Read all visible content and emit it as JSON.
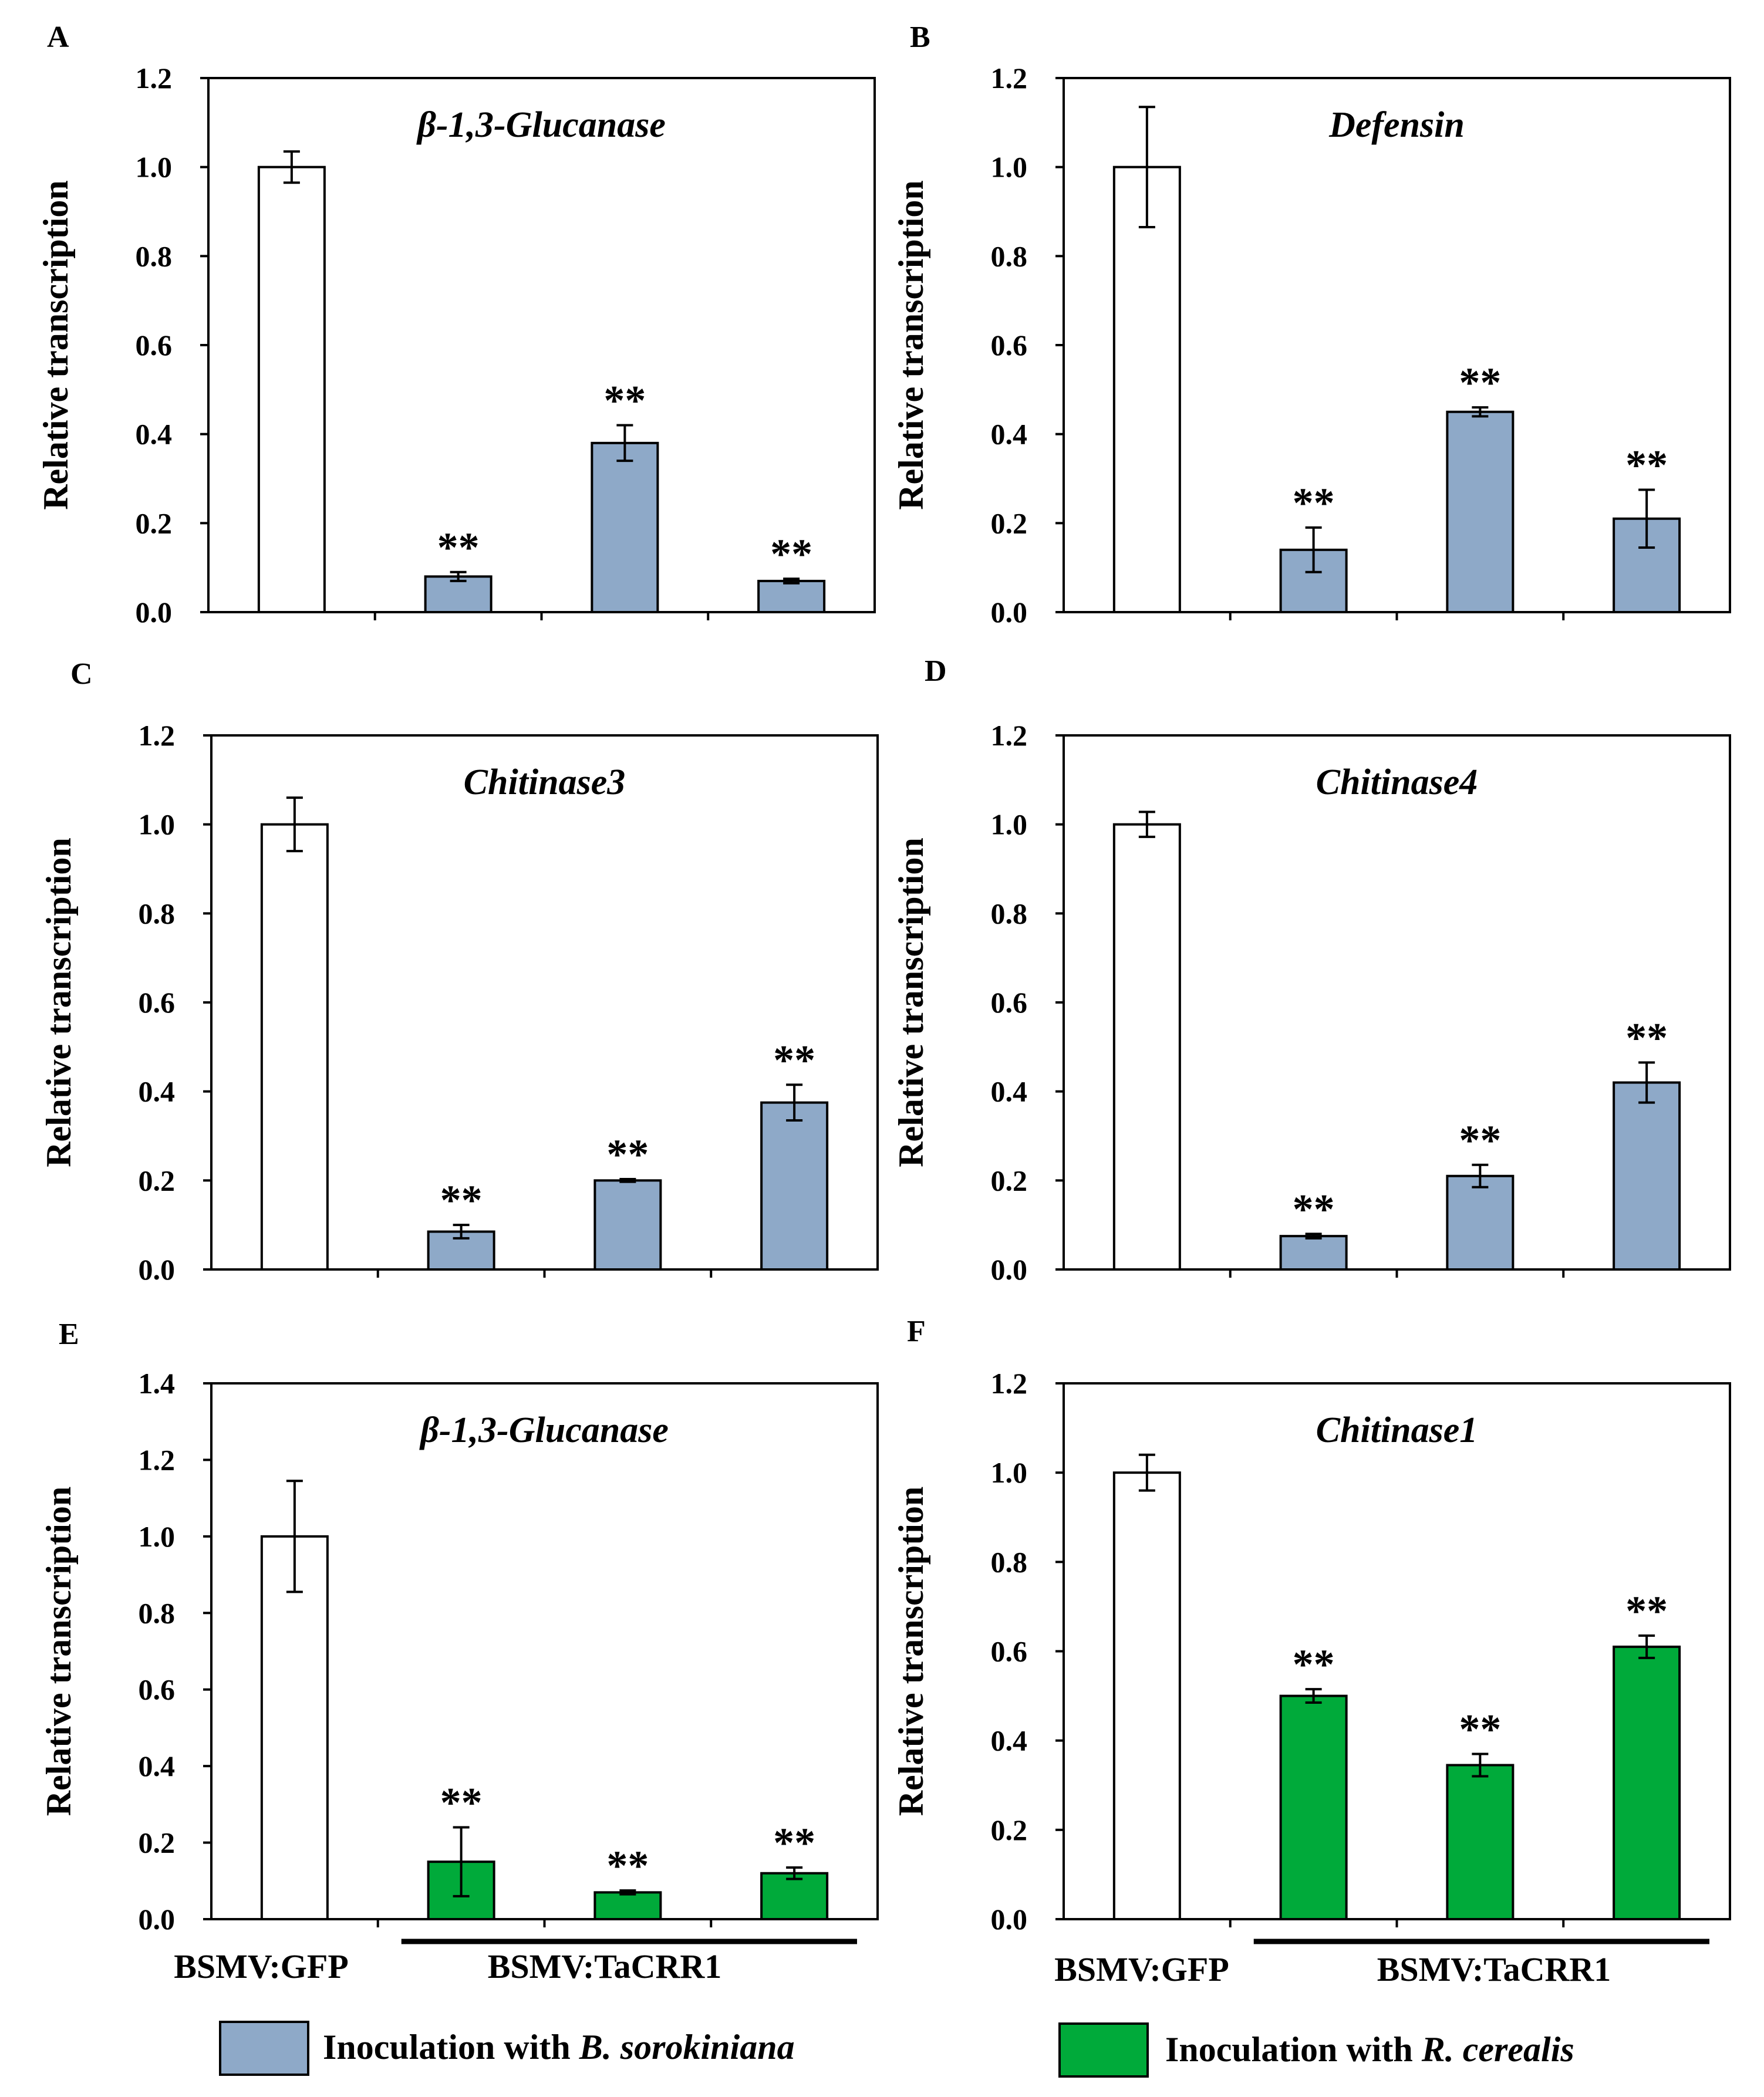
{
  "chart_data": [
    {
      "type": "bar",
      "panel": "A",
      "title": "β-1,3-Glucanase",
      "ylabel": "Relative transcription",
      "ylim": [
        0,
        1.2
      ],
      "yticks": [
        "0.0",
        "0.2",
        "0.4",
        "0.6",
        "0.8",
        "1.0",
        "1.2"
      ],
      "values": [
        1.0,
        0.08,
        0.38,
        0.07
      ],
      "errors": [
        0.035,
        0.01,
        0.04,
        0.005
      ],
      "significance": [
        "",
        "**",
        "**",
        "**"
      ],
      "bar_colors": [
        "#ffffff",
        "#8ea9c8",
        "#8ea9c8",
        "#8ea9c8"
      ]
    },
    {
      "type": "bar",
      "panel": "B",
      "title": "Defensin",
      "ylabel": "Relative transcription",
      "ylim": [
        0,
        1.2
      ],
      "yticks": [
        "0.0",
        "0.2",
        "0.4",
        "0.6",
        "0.8",
        "1.0",
        "1.2"
      ],
      "values": [
        1.0,
        0.14,
        0.45,
        0.21
      ],
      "errors": [
        0.135,
        0.05,
        0.01,
        0.065
      ],
      "significance": [
        "",
        "**",
        "**",
        "**"
      ],
      "bar_colors": [
        "#ffffff",
        "#8ea9c8",
        "#8ea9c8",
        "#8ea9c8"
      ]
    },
    {
      "type": "bar",
      "panel": "C",
      "title": "Chitinase3",
      "ylabel": "Relative transcription",
      "ylim": [
        0,
        1.2
      ],
      "yticks": [
        "0.0",
        "0.2",
        "0.4",
        "0.6",
        "0.8",
        "1.0",
        "1.2"
      ],
      "values": [
        1.0,
        0.085,
        0.2,
        0.375
      ],
      "errors": [
        0.06,
        0.015,
        0.003,
        0.04
      ],
      "significance": [
        "",
        "**",
        "**",
        "**"
      ],
      "bar_colors": [
        "#ffffff",
        "#8ea9c8",
        "#8ea9c8",
        "#8ea9c8"
      ]
    },
    {
      "type": "bar",
      "panel": "D",
      "title": "Chitinase4",
      "ylabel": "Relative transcription",
      "ylim": [
        0,
        1.2
      ],
      "yticks": [
        "0.0",
        "0.2",
        "0.4",
        "0.6",
        "0.8",
        "1.0",
        "1.2"
      ],
      "values": [
        1.0,
        0.075,
        0.21,
        0.42
      ],
      "errors": [
        0.028,
        0.005,
        0.025,
        0.045
      ],
      "significance": [
        "",
        "**",
        "**",
        "**"
      ],
      "bar_colors": [
        "#ffffff",
        "#8ea9c8",
        "#8ea9c8",
        "#8ea9c8"
      ]
    },
    {
      "type": "bar",
      "panel": "E",
      "title": "β-1,3-Glucanase",
      "ylabel": "Relative transcription",
      "ylim": [
        0,
        1.4
      ],
      "yticks": [
        "0.0",
        "0.2",
        "0.4",
        "0.6",
        "0.8",
        "1.0",
        "1.2",
        "1.4"
      ],
      "values": [
        1.0,
        0.15,
        0.07,
        0.12
      ],
      "errors": [
        0.145,
        0.09,
        0.005,
        0.015
      ],
      "significance": [
        "",
        "**",
        "**",
        "**"
      ],
      "bar_colors": [
        "#ffffff",
        "#00aa3a",
        "#00aa3a",
        "#00aa3a"
      ]
    },
    {
      "type": "bar",
      "panel": "F",
      "title": "Chitinase1",
      "ylabel": "Relative transcription",
      "ylim": [
        0,
        1.2
      ],
      "yticks": [
        "0.0",
        "0.2",
        "0.4",
        "0.6",
        "0.8",
        "1.0",
        "1.2"
      ],
      "values": [
        1.0,
        0.5,
        0.345,
        0.61
      ],
      "errors": [
        0.04,
        0.015,
        0.025,
        0.025
      ],
      "significance": [
        "",
        "**",
        "**",
        "**"
      ],
      "bar_colors": [
        "#ffffff",
        "#00aa3a",
        "#00aa3a",
        "#00aa3a"
      ]
    }
  ],
  "group_labels": {
    "control": "BSMV:GFP",
    "silenced": "BSMV:TaCRR1"
  },
  "legend": [
    {
      "prefix": "Inoculation with ",
      "organism": "B. sorokiniana",
      "color": "#8ea9c8"
    },
    {
      "prefix": "Inoculation with ",
      "organism": "R. cerealis",
      "color": "#00aa3a"
    }
  ]
}
